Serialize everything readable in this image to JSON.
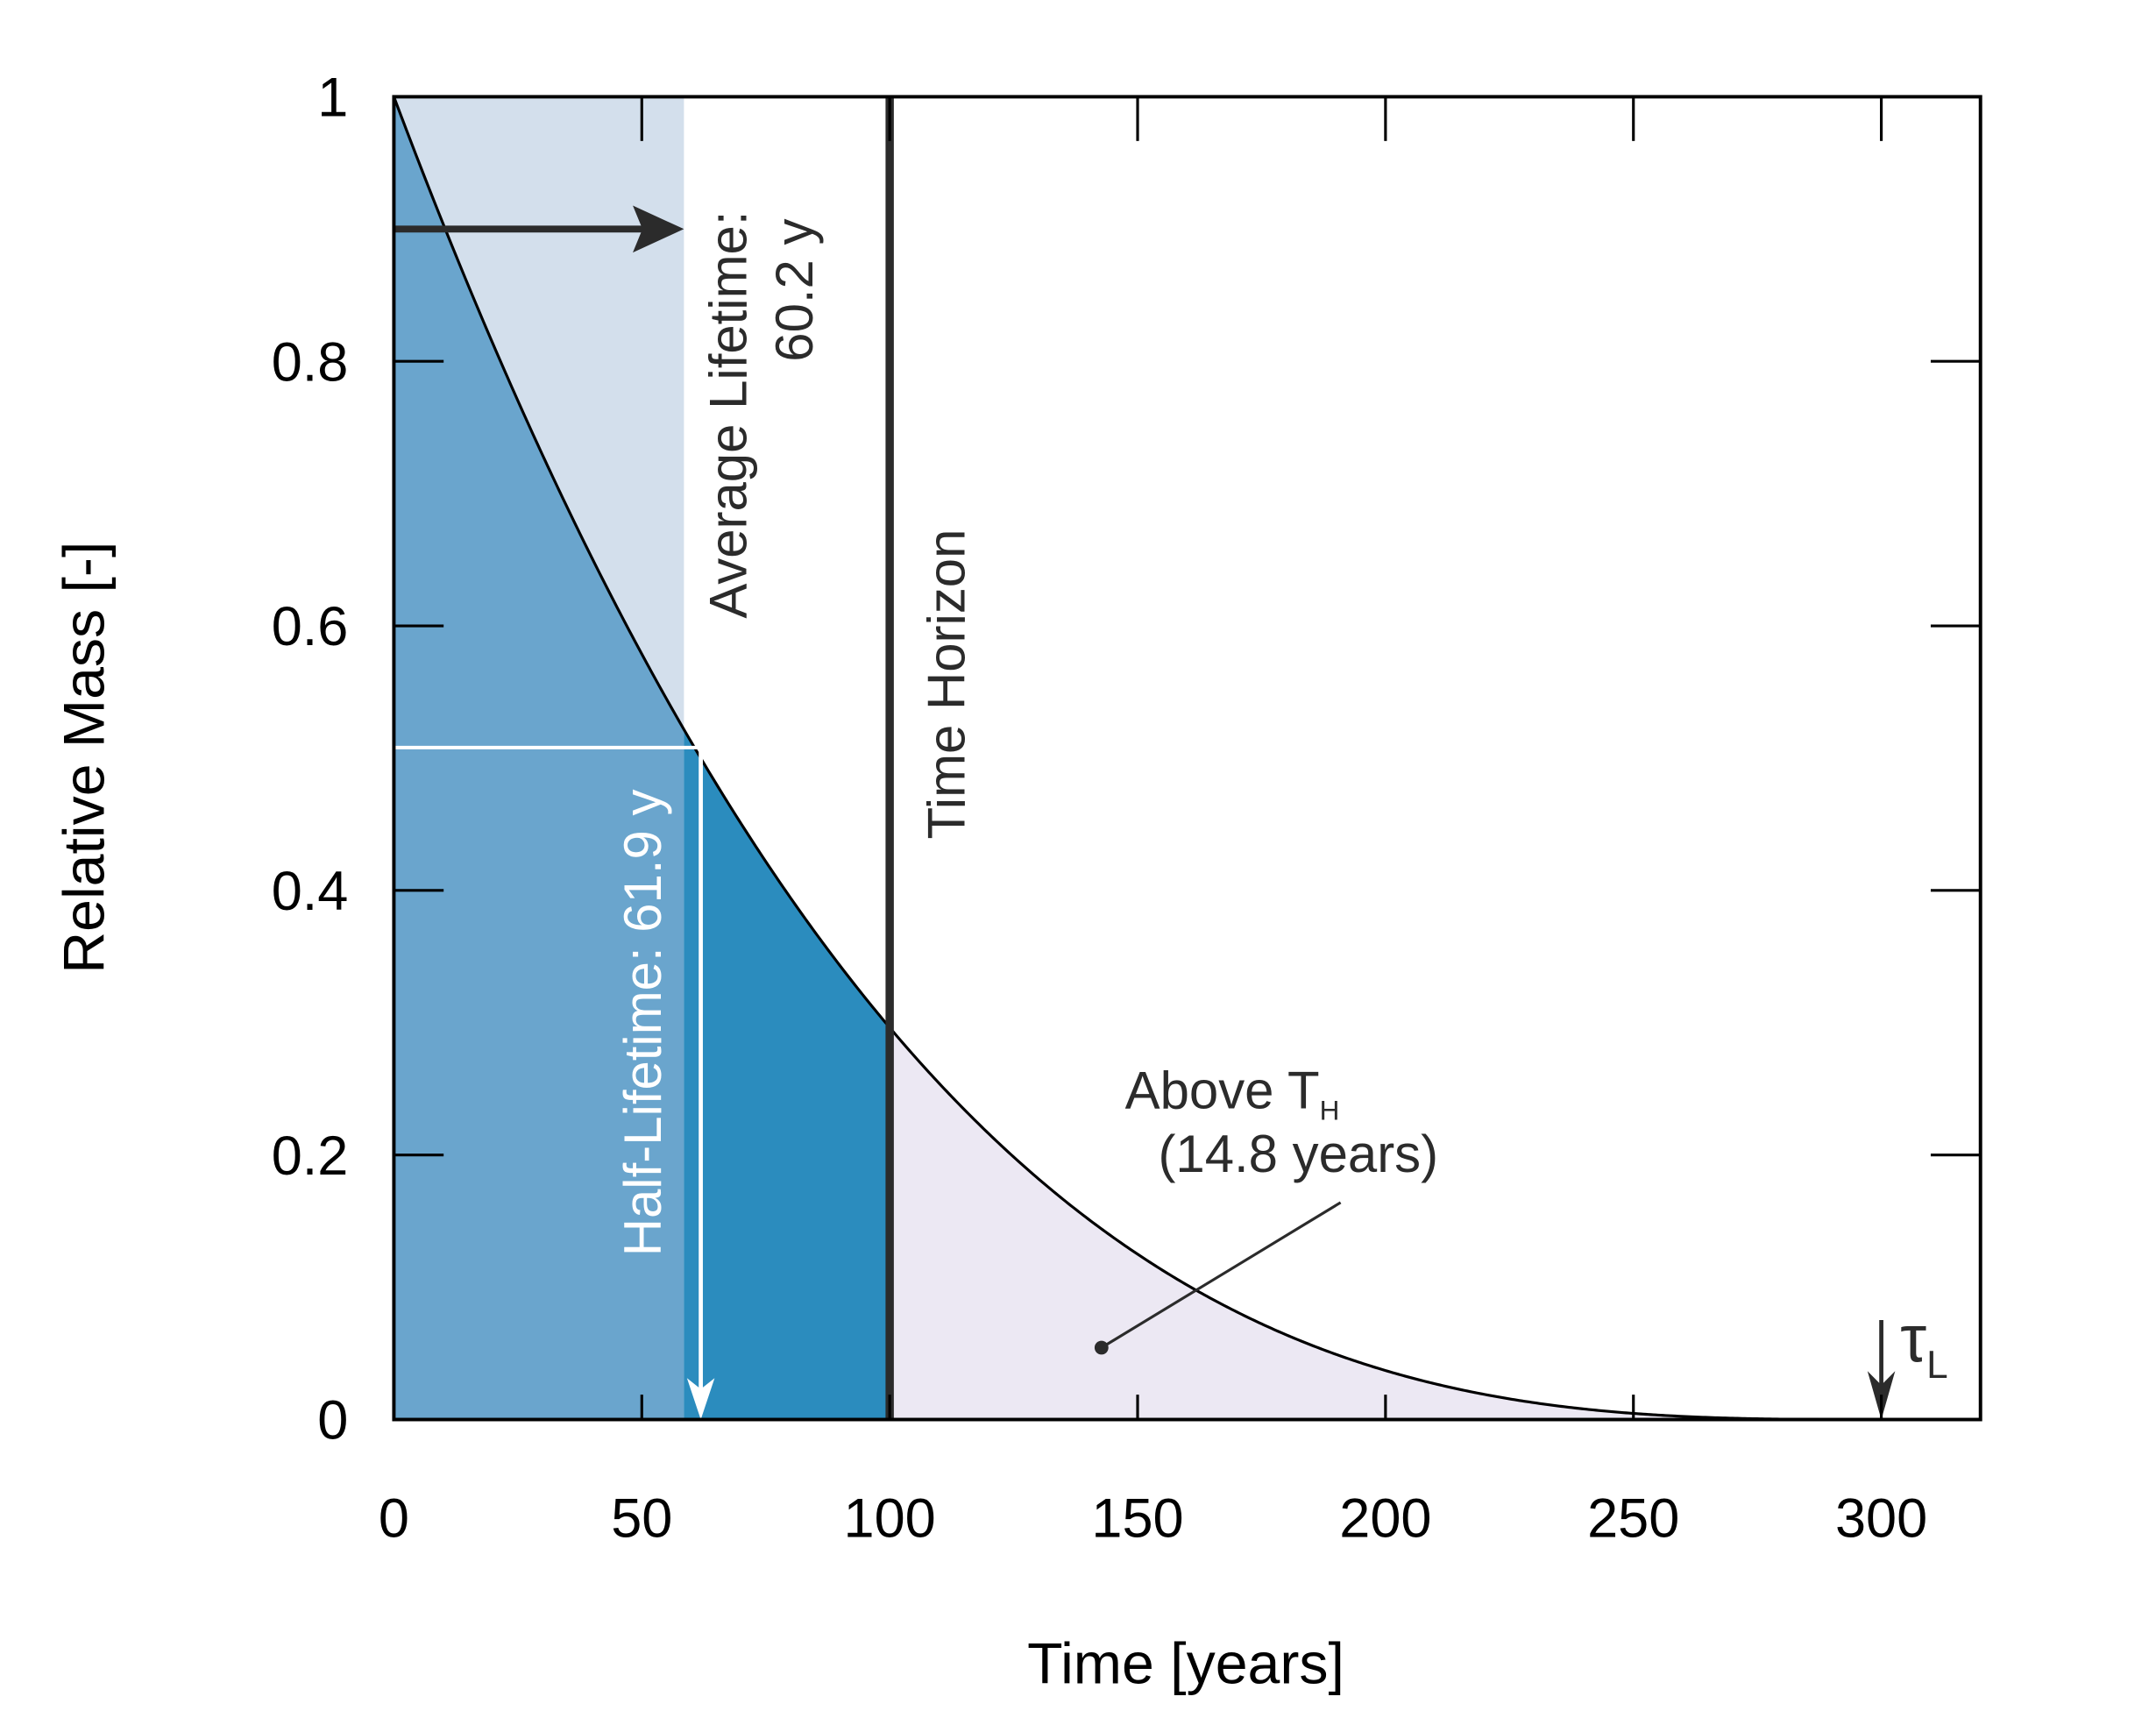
{
  "chart_data": {
    "type": "area",
    "xlabel": "Time [years]",
    "ylabel": "Relative Mass [-]",
    "xlim": [
      0,
      320
    ],
    "ylim": [
      0,
      1
    ],
    "xticks": [
      0,
      50,
      100,
      150,
      200,
      250,
      300
    ],
    "yticks": [
      0,
      0.2,
      0.4,
      0.6,
      0.8,
      1
    ],
    "ytick_labels": [
      "0",
      "0.2",
      "0.4",
      "0.6",
      "0.8",
      "1"
    ],
    "grid": false,
    "curve": {
      "description_formula": "m(t) = (1 - t/300)^3",
      "x": [
        0,
        10,
        20,
        30,
        40,
        50,
        60,
        70,
        80,
        90,
        100,
        120,
        140,
        160,
        180,
        200,
        220,
        240,
        260,
        280,
        300
      ],
      "y": [
        1.0,
        0.9033,
        0.813,
        0.729,
        0.651,
        0.5787,
        0.512,
        0.4506,
        0.3943,
        0.343,
        0.2963,
        0.216,
        0.1517,
        0.1016,
        0.064,
        0.037,
        0.019,
        0.008,
        0.0024,
        0.0003,
        0.0
      ]
    },
    "regions": [
      {
        "name": "average-lifetime-region",
        "x_from": 0,
        "x_to": 58.5,
        "color": "#d3dfec"
      },
      {
        "name": "below-curve-before-half",
        "x_from": 0,
        "x_to": 58.5,
        "color": "#6aa5cd"
      },
      {
        "name": "below-curve-to-horizon",
        "x_from": 58.5,
        "x_to": 100,
        "color": "#2b8cbe"
      },
      {
        "name": "above-time-horizon",
        "x_from": 100,
        "x_to": 300,
        "color": "#ece8f3"
      }
    ],
    "time_horizon": 100,
    "half_level": 0.508,
    "half_lifetime_x": 61.9,
    "avg_arrow_y": 0.9,
    "tau_l_x": 300,
    "annotations": {
      "avg_line1": "Average Lifetime:",
      "avg_line2": "60.2 y",
      "time_horizon": "Time Horizon",
      "half_lifetime": "Half-Lifetime: 61.9 y",
      "above_th": "Above T",
      "above_th_sub": "H",
      "above_th_value": "(14.8 years)",
      "tau": "τ",
      "tau_sub": "L"
    },
    "colors": {
      "axis": "#000000",
      "dark": "#2b2b2b",
      "white": "#ffffff"
    }
  }
}
